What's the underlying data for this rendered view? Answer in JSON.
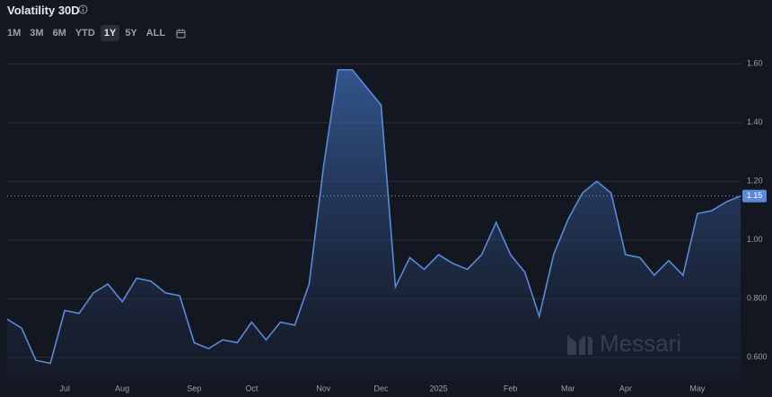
{
  "chart_data": {
    "type": "area",
    "title": "Volatility 30D",
    "range_buttons": [
      "1M",
      "3M",
      "6M",
      "YTD",
      "1Y",
      "5Y",
      "ALL"
    ],
    "selected_range": "1Y",
    "watermark": "Messari",
    "color": "#5b8ad6",
    "categories": [
      null,
      null,
      null,
      null,
      "Jul",
      null,
      null,
      null,
      "Aug",
      null,
      null,
      null,
      null,
      "Sep",
      null,
      null,
      null,
      "Oct",
      null,
      null,
      null,
      null,
      "Nov",
      null,
      null,
      null,
      "Dec",
      null,
      null,
      null,
      "2025",
      null,
      null,
      null,
      null,
      "Feb",
      null,
      null,
      null,
      "Mar",
      null,
      null,
      null,
      "Apr",
      null,
      null,
      null,
      null,
      "May",
      null,
      null,
      null
    ],
    "values": [
      0.73,
      0.7,
      0.59,
      0.58,
      0.76,
      0.75,
      0.82,
      0.85,
      0.79,
      0.87,
      0.86,
      0.82,
      0.81,
      0.65,
      0.63,
      0.66,
      0.65,
      0.72,
      0.66,
      0.72,
      0.71,
      0.85,
      1.25,
      1.58,
      1.58,
      1.52,
      1.46,
      0.84,
      0.94,
      0.9,
      0.95,
      0.92,
      0.9,
      0.95,
      1.06,
      0.95,
      0.89,
      0.74,
      0.95,
      1.07,
      1.16,
      1.2,
      1.16,
      0.95,
      0.94,
      0.88,
      0.93,
      0.88,
      1.09,
      1.1,
      1.13,
      1.15
    ],
    "value_labels": [
      null,
      null,
      null,
      null,
      null,
      null,
      null,
      null,
      null,
      null,
      null,
      null,
      null,
      null,
      null,
      null,
      null,
      null,
      null,
      null,
      null,
      null,
      null,
      null,
      null,
      null,
      null,
      null,
      null,
      null,
      null,
      null,
      null,
      null,
      null,
      null,
      null,
      null,
      null,
      null,
      null,
      null,
      null,
      null,
      null,
      null,
      null,
      null,
      null,
      null,
      null,
      "1.15"
    ],
    "ylim": [
      0.52,
      1.65
    ],
    "yticks": [
      {
        "value": 0.6,
        "label": "0.600"
      },
      {
        "value": 0.8,
        "label": "0.800"
      },
      {
        "value": 1.0,
        "label": "1.00"
      },
      {
        "value": 1.2,
        "label": "1.20"
      },
      {
        "value": 1.4,
        "label": "1.40"
      },
      {
        "value": 1.6,
        "label": "1.60"
      }
    ],
    "grid": true
  }
}
